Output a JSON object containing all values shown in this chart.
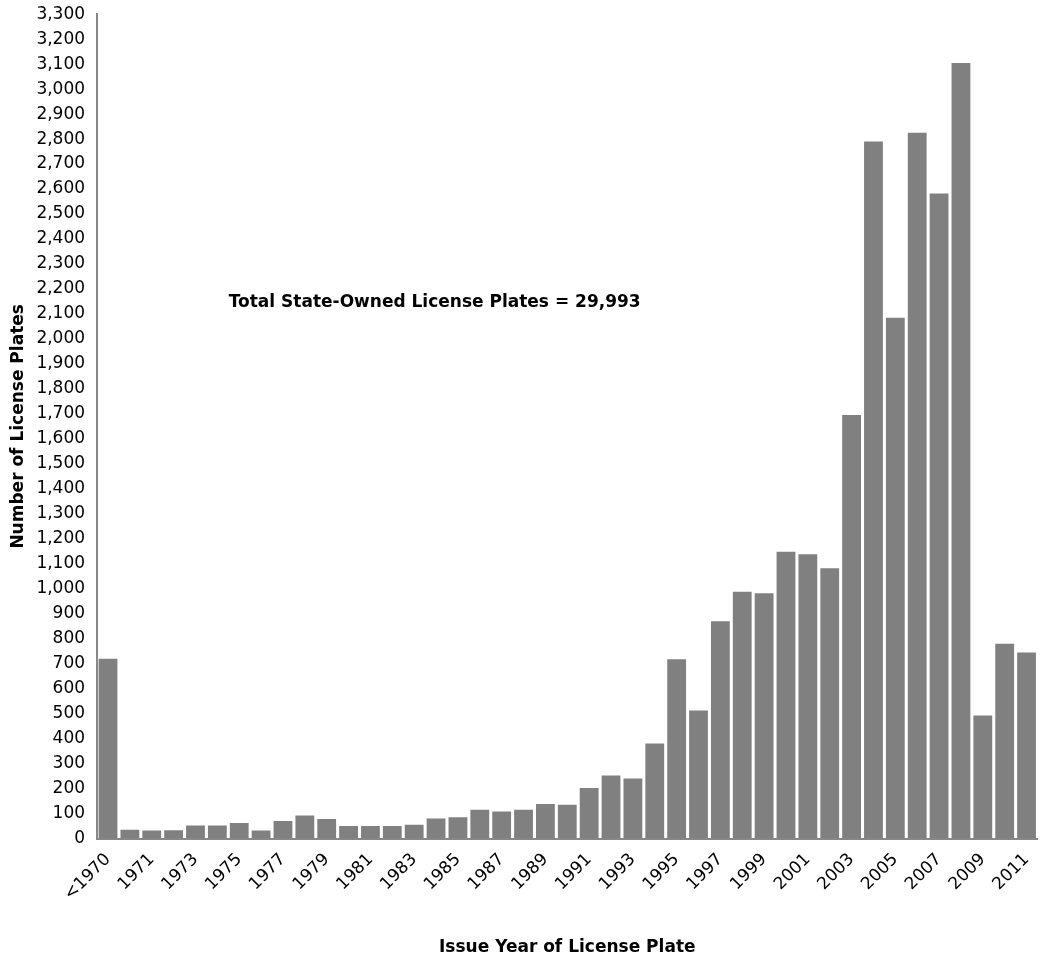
{
  "chart_data": {
    "type": "bar",
    "xlabel": "Issue Year of License Plate",
    "ylabel": "Number of License Plates",
    "categories": [
      "<1970",
      null,
      "1971",
      null,
      "1973",
      null,
      "1975",
      null,
      "1977",
      null,
      "1979",
      null,
      "1981",
      null,
      "1983",
      null,
      "1985",
      null,
      "1987",
      null,
      "1989",
      null,
      "1991",
      null,
      "1993",
      null,
      "1995",
      null,
      "1997",
      null,
      "1999",
      null,
      "2001",
      null,
      "2003",
      null,
      "2005",
      null,
      "2007",
      null,
      "2009",
      null,
      "2011"
    ],
    "values": [
      720,
      35,
      32,
      33,
      52,
      52,
      62,
      32,
      70,
      92,
      78,
      50,
      50,
      50,
      55,
      80,
      85,
      115,
      108,
      115,
      138,
      135,
      202,
      252,
      240,
      380,
      718,
      512,
      870,
      988,
      982,
      1148,
      1138,
      1082,
      1695,
      2790,
      2085,
      2825,
      2582,
      3105,
      492,
      780,
      745
    ],
    "color": "#808080",
    "ylim": [
      0,
      3300
    ],
    "yticks": [
      0,
      100,
      200,
      300,
      400,
      500,
      600,
      700,
      800,
      900,
      {
        "value": 1000,
        "label": "1,000"
      },
      {
        "value": 1100,
        "label": "1,100"
      },
      {
        "value": 1200,
        "label": "1,200"
      },
      {
        "value": 1300,
        "label": "1,300"
      },
      {
        "value": 1400,
        "label": "1,400"
      },
      {
        "value": 1500,
        "label": "1,500"
      },
      {
        "value": 1600,
        "label": "1,600"
      },
      {
        "value": 1700,
        "label": "1,700"
      },
      {
        "value": 1800,
        "label": "1,800"
      },
      {
        "value": 1900,
        "label": "1,900"
      },
      {
        "value": 2000,
        "label": "2,000"
      },
      {
        "value": 2100,
        "label": "2,100"
      },
      {
        "value": 2200,
        "label": "2,200"
      },
      {
        "value": 2300,
        "label": "2,300"
      },
      {
        "value": 2400,
        "label": "2,400"
      },
      {
        "value": 2500,
        "label": "2,500"
      },
      {
        "value": 2600,
        "label": "2,600"
      },
      {
        "value": 2700,
        "label": "2,700"
      },
      {
        "value": 2800,
        "label": "2,800"
      },
      {
        "value": 2900,
        "label": "2,900"
      },
      {
        "value": 3000,
        "label": "3,000"
      },
      {
        "value": 3100,
        "label": "3,100"
      },
      {
        "value": 3200,
        "label": "3,200"
      },
      {
        "value": 3300,
        "label": "3,300"
      }
    ],
    "grid": false,
    "legend": false,
    "annotations": [
      "Total State-Owned License Plates = 29,993"
    ]
  }
}
